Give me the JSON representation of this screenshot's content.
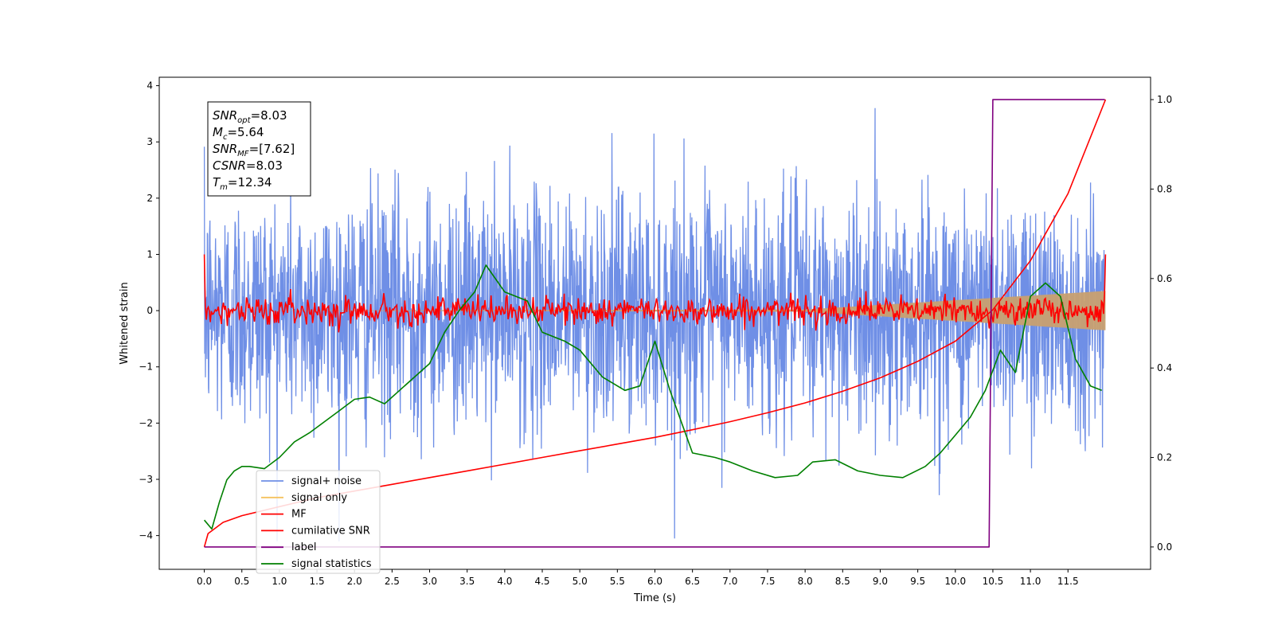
{
  "chart_data": {
    "type": "line",
    "xlabel": "Time (s)",
    "ylabel": "Whitened strain",
    "xlim": [
      -0.6,
      12.6
    ],
    "ylim": [
      -4.6,
      4.15
    ],
    "y2lim": [
      -0.05,
      1.05
    ],
    "x_ticks": [
      0.0,
      0.5,
      1.0,
      1.5,
      2.0,
      2.5,
      3.0,
      3.5,
      4.0,
      4.5,
      5.0,
      5.5,
      6.0,
      6.5,
      7.0,
      7.5,
      8.0,
      8.5,
      9.0,
      9.5,
      10.0,
      10.5,
      11.0,
      11.5
    ],
    "x_tick_labels": [
      "0.0",
      "0.5",
      "1.0",
      "1.5",
      "2.0",
      "2.5",
      "3.0",
      "3.5",
      "4.0",
      "4.5",
      "5.0",
      "5.5",
      "6.0",
      "6.5",
      "7.0",
      "7.5",
      "8.0",
      "8.5",
      "9.0",
      "9.5",
      "10.0",
      "10.5",
      "11.0",
      "11.5"
    ],
    "y_ticks": [
      4,
      3,
      2,
      1,
      0,
      -1,
      -2,
      -3,
      -4
    ],
    "y_tick_labels": [
      "4",
      "3",
      "2",
      "1",
      "0",
      "−1",
      "−2",
      "−3",
      "−4"
    ],
    "y2_ticks": [
      0.0,
      0.2,
      0.4,
      0.6,
      0.8,
      1.0
    ],
    "y2_tick_labels": [
      "0.0",
      "0.2",
      "0.4",
      "0.6",
      "0.8",
      "1.0"
    ],
    "annotation": {
      "lines": [
        {
          "sym": "SNR",
          "sub": "opt",
          "val": "=8.03"
        },
        {
          "sym": "M",
          "sub": "c",
          "val": "=5.64"
        },
        {
          "sym": "SNR",
          "sub": "MF",
          "val": "=[7.62]"
        },
        {
          "sym": "CSNR",
          "sub": "",
          "val": "=8.03"
        },
        {
          "sym": "T",
          "sub": "m",
          "val": "=12.34"
        }
      ]
    },
    "legend": {
      "placement": "lower-left",
      "entries": [
        {
          "label": "signal+ noise",
          "color": "#6f8fe6"
        },
        {
          "label": "signal only",
          "color": "#f5c25e"
        },
        {
          "label": "MF",
          "color": "#ff0000"
        },
        {
          "label": "cumilative SNR",
          "color": "#ff0000"
        },
        {
          "label": "label",
          "color": "#800080"
        },
        {
          "label": "signal statistics",
          "color": "#008000"
        }
      ]
    },
    "series": [
      {
        "name": "signal+ noise",
        "axis": "left",
        "kind": "noise",
        "x_range": [
          0.0,
          11.99
        ],
        "amplitude_std": 1.05,
        "color": "#6f8fe6"
      },
      {
        "name": "signal only",
        "axis": "left",
        "kind": "envelope",
        "x": [
          0.0,
          8.0,
          12.0
        ],
        "upper": [
          0.0,
          0.02,
          0.35
        ],
        "lower": [
          0.0,
          -0.02,
          -0.35
        ],
        "color": "#c8a070"
      },
      {
        "name": "MF",
        "axis": "left",
        "kind": "noise",
        "x_range": [
          0.0,
          12.0
        ],
        "amplitude_std": 0.12,
        "edge_values": [
          1.0,
          1.0
        ],
        "color": "#ff0000"
      },
      {
        "name": "cumilative SNR",
        "axis": "right",
        "x": [
          0.0,
          0.05,
          0.25,
          0.5,
          1,
          1.5,
          2,
          2.5,
          3,
          3.5,
          4,
          4.5,
          5,
          5.5,
          6,
          6.5,
          7,
          7.5,
          8,
          8.5,
          9,
          9.5,
          10,
          10.5,
          11,
          11.5,
          12.0
        ],
        "y": [
          0.0,
          0.03,
          0.055,
          0.07,
          0.09,
          0.11,
          0.125,
          0.14,
          0.155,
          0.17,
          0.185,
          0.2,
          0.215,
          0.23,
          0.245,
          0.262,
          0.28,
          0.3,
          0.322,
          0.348,
          0.378,
          0.415,
          0.46,
          0.53,
          0.64,
          0.79,
          1.0
        ],
        "color": "#ff0000"
      },
      {
        "name": "label",
        "axis": "right",
        "x": [
          0.0,
          10.45,
          10.5,
          11.99
        ],
        "y": [
          0.0,
          0.0,
          1.0,
          1.0
        ],
        "color": "#800080"
      },
      {
        "name": "signal statistics",
        "axis": "right",
        "x": [
          0.0,
          0.1,
          0.2,
          0.3,
          0.4,
          0.5,
          0.6,
          0.8,
          1.0,
          1.2,
          1.4,
          1.6,
          1.8,
          2.0,
          2.2,
          2.4,
          2.6,
          2.8,
          3.0,
          3.2,
          3.4,
          3.6,
          3.75,
          4.0,
          4.3,
          4.5,
          4.8,
          5.0,
          5.3,
          5.6,
          5.8,
          6.0,
          6.2,
          6.5,
          6.8,
          7.0,
          7.3,
          7.6,
          7.9,
          8.1,
          8.4,
          8.7,
          9.0,
          9.3,
          9.6,
          9.8,
          10.0,
          10.2,
          10.4,
          10.6,
          10.8,
          11.0,
          11.2,
          11.4,
          11.6,
          11.8,
          11.95
        ],
        "y": [
          0.06,
          0.04,
          0.1,
          0.15,
          0.17,
          0.18,
          0.18,
          0.175,
          0.2,
          0.235,
          0.255,
          0.28,
          0.305,
          0.33,
          0.335,
          0.32,
          0.35,
          0.38,
          0.41,
          0.48,
          0.53,
          0.57,
          0.63,
          0.57,
          0.55,
          0.48,
          0.46,
          0.44,
          0.38,
          0.35,
          0.36,
          0.46,
          0.35,
          0.21,
          0.2,
          0.19,
          0.17,
          0.155,
          0.16,
          0.19,
          0.195,
          0.17,
          0.16,
          0.155,
          0.18,
          0.21,
          0.25,
          0.29,
          0.35,
          0.44,
          0.39,
          0.56,
          0.59,
          0.56,
          0.42,
          0.36,
          0.35
        ],
        "color": "#008000"
      }
    ]
  }
}
